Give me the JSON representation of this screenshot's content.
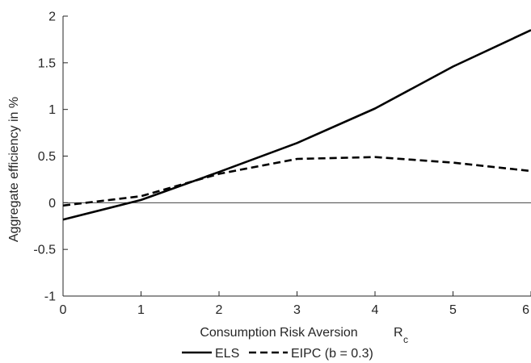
{
  "chart_data": {
    "type": "line",
    "xlabel": "Consumption Risk Aversion",
    "xlabel_symbol": "R",
    "xlabel_subscript": "c",
    "ylabel": "Aggregate efficiency in %",
    "xlim": [
      0,
      6
    ],
    "ylim": [
      -1,
      2
    ],
    "xticks": [
      0,
      1,
      2,
      3,
      4,
      5,
      6
    ],
    "xtick_labels": [
      "0",
      "1",
      "2",
      "3",
      "4",
      "5",
      "6"
    ],
    "yticks": [
      -1,
      -0.5,
      0,
      0.5,
      1,
      1.5,
      2
    ],
    "ytick_labels": [
      "-1",
      "-0.5",
      "0",
      "0.5",
      "1",
      "1.5",
      "2"
    ],
    "zero_line": true,
    "grid": false,
    "legend_position": "bottom-center",
    "series": [
      {
        "name": "ELS",
        "style": "solid",
        "color": "#000000",
        "x": [
          0,
          1,
          2,
          3,
          4,
          5,
          6
        ],
        "y": [
          -0.18,
          0.03,
          0.33,
          0.64,
          1.01,
          1.46,
          1.85
        ]
      },
      {
        "name": "EIPC (b = 0.3)",
        "style": "dashed",
        "color": "#000000",
        "x": [
          0,
          1,
          2,
          3,
          4,
          5,
          6
        ],
        "y": [
          -0.03,
          0.07,
          0.31,
          0.47,
          0.49,
          0.43,
          0.34
        ]
      }
    ]
  }
}
